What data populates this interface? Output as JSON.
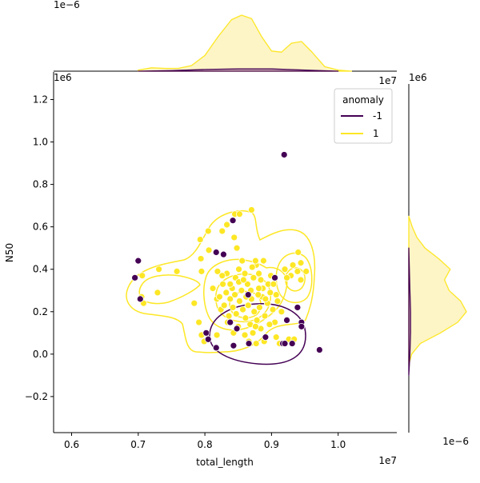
{
  "chart_data": {
    "type": "scatter",
    "subtype": "jointplot-kde",
    "xlabel": "total_length",
    "ylabel": "N50",
    "xlim": [
      0.573,
      1.088
    ],
    "ylim": [
      -0.37,
      1.33
    ],
    "x_ticks": [
      0.6,
      0.7,
      0.8,
      0.9,
      1.0
    ],
    "x_tick_labels": [
      "0.6",
      "0.7",
      "0.8",
      "0.9",
      "1.0"
    ],
    "y_ticks": [
      -0.2,
      0.0,
      0.2,
      0.4,
      0.6,
      0.8,
      1.0,
      1.2
    ],
    "y_tick_labels": [
      "−0.2",
      "0.0",
      "0.2",
      "0.4",
      "0.6",
      "0.8",
      "1.0",
      "1.2"
    ],
    "x_offset": "1e7",
    "y_offset": "1e6",
    "top_marginal_offset": "1e−6",
    "right_marginal_offset": "1e−6",
    "legend": {
      "title": "anomaly",
      "placement": "upper right",
      "entries": [
        {
          "label": "-1",
          "color": "#440154"
        },
        {
          "label": "1",
          "color": "#fde725"
        }
      ]
    },
    "series": [
      {
        "name": "-1",
        "color": "#440154",
        "points": [
          [
            0.919,
            0.94
          ],
          [
            0.842,
            0.63
          ],
          [
            0.828,
            0.47
          ],
          [
            0.817,
            0.48
          ],
          [
            0.7,
            0.44
          ],
          [
            0.695,
            0.36
          ],
          [
            0.905,
            0.36
          ],
          [
            0.703,
            0.26
          ],
          [
            0.865,
            0.28
          ],
          [
            0.945,
            0.15
          ],
          [
            0.945,
            0.13
          ],
          [
            0.939,
            0.22
          ],
          [
            0.923,
            0.16
          ],
          [
            0.931,
            0.05
          ],
          [
            0.917,
            0.05
          ],
          [
            0.92,
            0.05
          ],
          [
            0.972,
            0.02
          ],
          [
            0.891,
            0.08
          ],
          [
            0.866,
            0.05
          ],
          [
            0.843,
            0.04
          ],
          [
            0.817,
            0.03
          ],
          [
            0.805,
            0.07
          ],
          [
            0.802,
            0.1
          ],
          [
            0.838,
            0.15
          ],
          [
            0.848,
            0.12
          ]
        ]
      },
      {
        "name": "1",
        "color": "#fde725",
        "points": [
          [
            0.845,
            0.66
          ],
          [
            0.852,
            0.66
          ],
          [
            0.87,
            0.68
          ],
          [
            0.833,
            0.61
          ],
          [
            0.826,
            0.58
          ],
          [
            0.844,
            0.55
          ],
          [
            0.848,
            0.5
          ],
          [
            0.805,
            0.58
          ],
          [
            0.793,
            0.54
          ],
          [
            0.806,
            0.49
          ],
          [
            0.794,
            0.45
          ],
          [
            0.795,
            0.39
          ],
          [
            0.731,
            0.4
          ],
          [
            0.758,
            0.39
          ],
          [
            0.706,
            0.37
          ],
          [
            0.729,
            0.29
          ],
          [
            0.708,
            0.24
          ],
          [
            0.705,
            0.27
          ],
          [
            0.784,
            0.24
          ],
          [
            0.791,
            0.15
          ],
          [
            0.795,
            0.09
          ],
          [
            0.799,
            0.06
          ],
          [
            0.818,
            0.09
          ],
          [
            0.833,
            0.38
          ],
          [
            0.826,
            0.37
          ],
          [
            0.819,
            0.39
          ],
          [
            0.827,
            0.33
          ],
          [
            0.832,
            0.29
          ],
          [
            0.841,
            0.31
          ],
          [
            0.846,
            0.36
          ],
          [
            0.851,
            0.4
          ],
          [
            0.856,
            0.44
          ],
          [
            0.86,
            0.38
          ],
          [
            0.864,
            0.33
          ],
          [
            0.869,
            0.3
          ],
          [
            0.873,
            0.36
          ],
          [
            0.877,
            0.42
          ],
          [
            0.881,
            0.38
          ],
          [
            0.884,
            0.35
          ],
          [
            0.888,
            0.44
          ],
          [
            0.876,
            0.44
          ],
          [
            0.887,
            0.31
          ],
          [
            0.838,
            0.26
          ],
          [
            0.842,
            0.22
          ],
          [
            0.847,
            0.19
          ],
          [
            0.852,
            0.25
          ],
          [
            0.857,
            0.21
          ],
          [
            0.861,
            0.17
          ],
          [
            0.865,
            0.23
          ],
          [
            0.87,
            0.26
          ],
          [
            0.874,
            0.2
          ],
          [
            0.878,
            0.16
          ],
          [
            0.882,
            0.22
          ],
          [
            0.886,
            0.27
          ],
          [
            0.89,
            0.18
          ],
          [
            0.894,
            0.24
          ],
          [
            0.898,
            0.29
          ],
          [
            0.902,
            0.21
          ],
          [
            0.905,
            0.15
          ],
          [
            0.897,
            0.14
          ],
          [
            0.884,
            0.12
          ],
          [
            0.872,
            0.1
          ],
          [
            0.86,
            0.09
          ],
          [
            0.85,
            0.13
          ],
          [
            0.843,
            0.1
          ],
          [
            0.836,
            0.18
          ],
          [
            0.824,
            0.21
          ],
          [
            0.818,
            0.26
          ],
          [
            0.812,
            0.31
          ],
          [
            0.822,
            0.27
          ],
          [
            0.829,
            0.23
          ],
          [
            0.834,
            0.15
          ],
          [
            0.855,
            0.3
          ],
          [
            0.862,
            0.27
          ],
          [
            0.868,
            0.14
          ],
          [
            0.876,
            0.13
          ],
          [
            0.88,
            0.28
          ],
          [
            0.891,
            0.26
          ],
          [
            0.895,
            0.33
          ],
          [
            0.899,
            0.37
          ],
          [
            0.903,
            0.33
          ],
          [
            0.866,
            0.06
          ],
          [
            0.877,
            0.05
          ],
          [
            0.889,
            0.06
          ],
          [
            0.907,
            0.08
          ],
          [
            0.912,
            0.05
          ],
          [
            0.926,
            0.07
          ],
          [
            0.934,
            0.07
          ],
          [
            0.939,
            0.39
          ],
          [
            0.944,
            0.43
          ],
          [
            0.94,
            0.48
          ],
          [
            0.932,
            0.42
          ],
          [
            0.929,
            0.37
          ],
          [
            0.923,
            0.36
          ],
          [
            0.92,
            0.4
          ],
          [
            0.944,
            0.35
          ],
          [
            0.952,
            0.39
          ],
          [
            0.909,
            0.25
          ],
          [
            0.915,
            0.2
          ],
          [
            0.907,
            0.28
          ],
          [
            0.851,
            0.34
          ],
          [
            0.858,
            0.35
          ],
          [
            0.845,
            0.28
          ],
          [
            0.838,
            0.33
          ],
          [
            0.871,
            0.41
          ],
          [
            0.881,
            0.31
          ]
        ]
      }
    ],
    "top_marginal": {
      "series": [
        {
          "name": "1",
          "x": [
            0.7,
            0.72,
            0.74,
            0.76,
            0.78,
            0.8,
            0.82,
            0.84,
            0.855,
            0.87,
            0.885,
            0.9,
            0.915,
            0.93,
            0.945,
            0.96,
            0.98,
            1.0,
            1.02
          ],
          "density": [
            0.02,
            0.06,
            0.05,
            0.05,
            0.1,
            0.28,
            0.62,
            0.92,
            1.0,
            0.94,
            0.62,
            0.36,
            0.34,
            0.5,
            0.53,
            0.35,
            0.08,
            0.02,
            0.0
          ]
        },
        {
          "name": "-1",
          "x": [
            0.7,
            0.75,
            0.8,
            0.85,
            0.9,
            0.95,
            1.0
          ],
          "density": [
            0.0,
            0.01,
            0.03,
            0.04,
            0.04,
            0.02,
            0.0
          ]
        }
      ]
    },
    "right_marginal": {
      "series": [
        {
          "name": "1",
          "y": [
            -0.05,
            0.0,
            0.05,
            0.1,
            0.15,
            0.2,
            0.25,
            0.3,
            0.35,
            0.4,
            0.45,
            0.5,
            0.55,
            0.6,
            0.65
          ],
          "density": [
            0.0,
            0.05,
            0.2,
            0.55,
            0.85,
            1.0,
            0.9,
            0.7,
            0.62,
            0.72,
            0.52,
            0.28,
            0.14,
            0.06,
            0.0
          ]
        },
        {
          "name": "-1",
          "y": [
            -0.1,
            0.0,
            0.1,
            0.2,
            0.3,
            0.4,
            0.5
          ],
          "density": [
            0.0,
            0.02,
            0.03,
            0.03,
            0.02,
            0.01,
            0.0
          ]
        }
      ]
    }
  }
}
